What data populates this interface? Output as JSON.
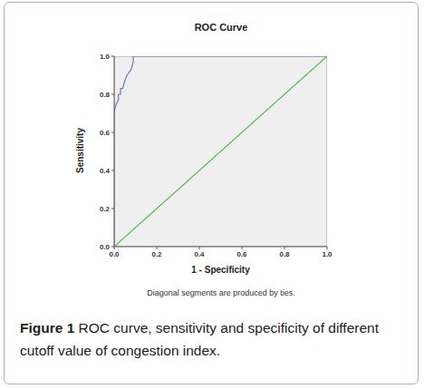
{
  "chart_data": {
    "type": "line",
    "title": "ROC Curve",
    "x_label": "1 - Specificity",
    "y_label": "Sensitivity",
    "note": "Diagonal segments are produced by ties.",
    "caption": {
      "label": "Figure 1",
      "text": "ROC curve, sensitivity and specificity of different cutoff value of congestion index."
    },
    "xlim": [
      0,
      1
    ],
    "ylim": [
      0,
      1
    ],
    "xticks": [
      {
        "value": 0,
        "label": "0.0"
      },
      {
        "value": 0.2,
        "label": "0.2"
      },
      {
        "value": 0.4,
        "label": "0.4"
      },
      {
        "value": 0.6,
        "label": "0.6"
      },
      {
        "value": 0.8,
        "label": "0.8"
      },
      {
        "value": 1,
        "label": "1.0"
      }
    ],
    "yticks": [
      {
        "value": 0,
        "label": "0.0"
      },
      {
        "value": 0.2,
        "label": "0.2"
      },
      {
        "value": 0.4,
        "label": "0.4"
      },
      {
        "value": 0.6,
        "label": "0.6"
      },
      {
        "value": 0.8,
        "label": "0.8"
      },
      {
        "value": 1,
        "label": "1.0"
      }
    ],
    "grid": false,
    "series": [
      {
        "color": "#6a79b8",
        "x": [
          0,
          0,
          0.01,
          0.02,
          0.02,
          0.03,
          0.03,
          0.04,
          0.05,
          0.06,
          0.08,
          0.09,
          0.09,
          0.1,
          1
        ],
        "values": [
          0,
          0.71,
          0.75,
          0.77,
          0.8,
          0.8,
          0.83,
          0.83,
          0.87,
          0.9,
          0.93,
          0.97,
          1,
          1,
          1
        ]
      },
      {
        "color": "#4cb84c",
        "x": [
          0,
          1
        ],
        "values": [
          0,
          1
        ]
      }
    ]
  }
}
